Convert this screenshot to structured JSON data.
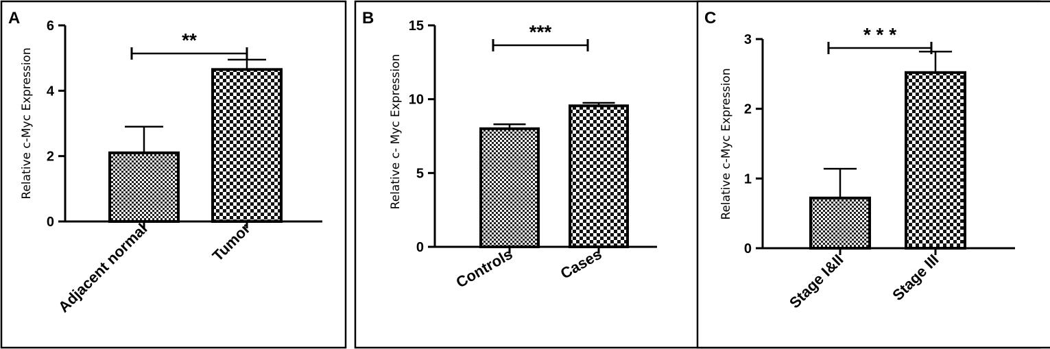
{
  "chart_data": [
    {
      "panel": "A",
      "type": "bar",
      "categories": [
        "Adjacent normal",
        "Tumor"
      ],
      "values": [
        2.1,
        4.65
      ],
      "error": [
        0.8,
        0.3
      ],
      "ylabel": "Relative c-Myc Expression",
      "ylim": [
        0,
        6
      ],
      "yticks": [
        0,
        2,
        4,
        6
      ],
      "significance": "**",
      "patterns": [
        "fine",
        "checker"
      ]
    },
    {
      "panel": "B",
      "type": "bar",
      "categories": [
        "Controls",
        "Cases"
      ],
      "values": [
        8.0,
        9.55
      ],
      "error": [
        0.3,
        0.2
      ],
      "ylabel": "Relative c- Myc Expression",
      "ylim": [
        0,
        15
      ],
      "yticks": [
        0,
        5,
        10,
        15
      ],
      "significance": "***",
      "patterns": [
        "fine",
        "checker"
      ]
    },
    {
      "panel": "C",
      "type": "bar",
      "categories": [
        "Stage I&II",
        "Stage III"
      ],
      "values": [
        0.72,
        2.52
      ],
      "error": [
        0.42,
        0.3
      ],
      "ylabel": "Relative c-Myc Expression",
      "ylim": [
        0,
        3
      ],
      "yticks": [
        0,
        1,
        2,
        3
      ],
      "significance": "* * *",
      "patterns": [
        "fine",
        "checker"
      ]
    }
  ]
}
